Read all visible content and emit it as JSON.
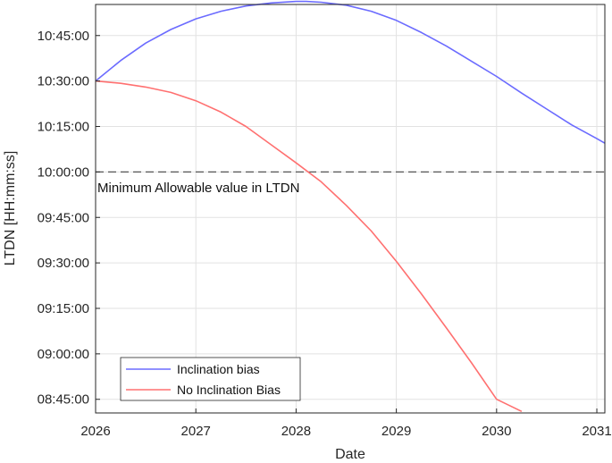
{
  "chart_data": {
    "type": "line",
    "title": "",
    "xlabel": "Date",
    "ylabel": "LTDN [HH:mm:ss]",
    "xlim": [
      2026,
      2031.08
    ],
    "ylim": [
      "08:40:30",
      "10:55:15"
    ],
    "grid": true,
    "x_ticks": [
      "2026",
      "2027",
      "2028",
      "2029",
      "2030",
      "2031"
    ],
    "y_ticks": [
      "08:45:00",
      "09:00:00",
      "09:15:00",
      "09:30:00",
      "09:45:00",
      "10:00:00",
      "10:15:00",
      "10:30:00",
      "10:45:00"
    ],
    "series": [
      {
        "name": "Inclination bias",
        "color": "#6b6bff",
        "x": [
          2026.0,
          2026.25,
          2026.5,
          2026.75,
          2027.0,
          2027.25,
          2027.5,
          2027.75,
          2028.0,
          2028.1,
          2028.25,
          2028.5,
          2028.75,
          2029.0,
          2029.25,
          2029.5,
          2029.75,
          2030.0,
          2030.25,
          2030.5,
          2030.75,
          2031.0,
          2031.08
        ],
        "y": [
          "10:30:00",
          "10:36:45",
          "10:42:30",
          "10:47:00",
          "10:50:30",
          "10:53:00",
          "10:54:45",
          "10:55:45",
          "10:56:15",
          "10:56:15",
          "10:56:00",
          "10:55:00",
          "10:53:00",
          "10:50:00",
          "10:46:00",
          "10:41:30",
          "10:36:30",
          "10:31:30",
          "10:26:00",
          "10:20:45",
          "10:15:30",
          "10:11:00",
          "10:09:30"
        ]
      },
      {
        "name": "No Inclination Bias",
        "color": "#ff7070",
        "x": [
          2026.0,
          2026.25,
          2026.5,
          2026.75,
          2027.0,
          2027.25,
          2027.5,
          2027.75,
          2028.0,
          2028.25,
          2028.5,
          2028.75,
          2029.0,
          2029.25,
          2029.5,
          2029.75,
          2030.0,
          2030.25
        ],
        "y": [
          "10:30:00",
          "10:29:15",
          "10:28:00",
          "10:26:15",
          "10:23:30",
          "10:19:45",
          "10:15:00",
          "10:09:00",
          "10:03:00",
          "09:56:45",
          "09:49:00",
          "09:40:30",
          "09:30:30",
          "09:19:45",
          "09:08:30",
          "08:57:00",
          "08:45:00",
          "08:41:00"
        ]
      }
    ],
    "reference_line": {
      "y": "10:00:00",
      "style": "dashed",
      "color": "#555555",
      "label": "Minimum Allowable value in LTDN"
    },
    "legend": {
      "placement": "bottom-left",
      "entries": [
        "Inclination bias",
        "No Inclination Bias"
      ]
    }
  }
}
